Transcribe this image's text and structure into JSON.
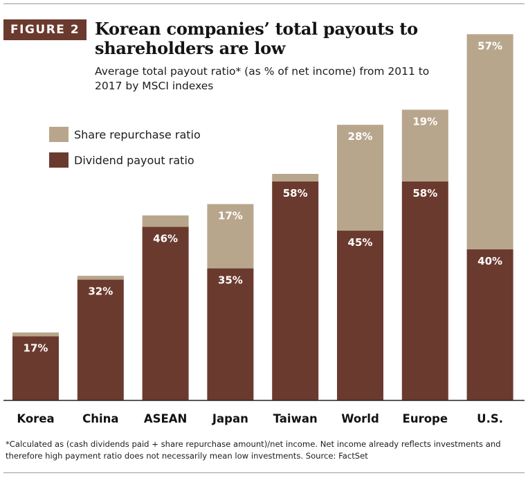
{
  "figure_label": "FIGURE 2",
  "title": "Korean companies’ total payouts to shareholders are low",
  "subtitle": "Average total payout ratio* (as % of net income) from 2011 to 2017 by MSCI indexes",
  "footnote": "*Calculated as (cash dividends paid + share repurchase amount)/net income. Net income already reflects investments and therefore high payment ratio does not necessarily mean low investments. Source: FactSet",
  "colors": {
    "dividend": "#6b3a2e",
    "repurchase": "#b8a68c",
    "badge": "#6b3a2e"
  },
  "chart_data": {
    "type": "bar",
    "stacked": true,
    "title": "Korean companies’ total payouts to shareholders are low",
    "xlabel": "",
    "ylabel": "",
    "ylim": [
      0,
      100
    ],
    "categories": [
      "Korea",
      "China",
      "ASEAN",
      "Japan",
      "Taiwan",
      "World",
      "Europe",
      "U.S."
    ],
    "series": [
      {
        "name": "Dividend payout ratio",
        "values": [
          17,
          32,
          46,
          35,
          58,
          45,
          58,
          40
        ],
        "labels": [
          "17%",
          "32%",
          "46%",
          "35%",
          "58%",
          "45%",
          "58%",
          "40%"
        ]
      },
      {
        "name": "Share repurchase ratio",
        "values": [
          1,
          1,
          3,
          17,
          2,
          28,
          19,
          57
        ],
        "labels": [
          "",
          "",
          "",
          "17%",
          "",
          "28%",
          "19%",
          "57%"
        ]
      }
    ],
    "legend": [
      "Share repurchase ratio",
      "Dividend payout ratio"
    ],
    "legend_position": "top-left",
    "grid": false
  }
}
